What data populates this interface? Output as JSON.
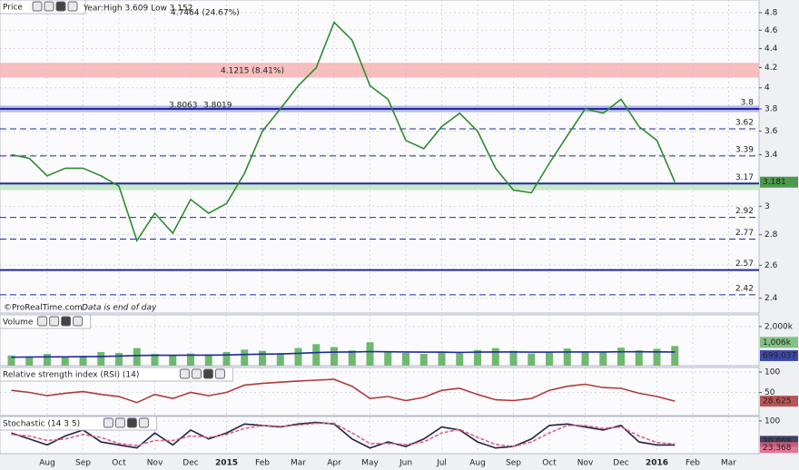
{
  "chart_data": [
    {
      "type": "line",
      "title": "Price",
      "subtitle": "Year:High 3.609 Low 3.152",
      "categories": [
        null,
        null,
        "Aug",
        null,
        "Sep",
        null,
        "Oct",
        null,
        "Nov",
        null,
        "Dec",
        null,
        "2015",
        null,
        "Feb",
        null,
        "Mar",
        null,
        "Apr",
        null,
        "May",
        null,
        "Jun",
        null,
        "Jul",
        null,
        "Aug",
        null,
        "Sep",
        null,
        "Oct",
        null,
        "Nov",
        null,
        "Dec",
        null,
        "2016",
        null,
        "Feb",
        null,
        "Mar"
      ],
      "series": [
        {
          "color": "#2e8b2e",
          "values": [
            3.4,
            3.37,
            3.23,
            3.29,
            3.29,
            3.23,
            3.15,
            2.76,
            2.95,
            2.81,
            3.05,
            2.95,
            3.02,
            3.25,
            3.6,
            3.8,
            4.02,
            4.2,
            4.69,
            4.49,
            4.02,
            3.89,
            3.52,
            3.45,
            3.64,
            3.76,
            3.6,
            3.29,
            3.12,
            3.1,
            3.33,
            3.56,
            3.8,
            3.76,
            3.89,
            3.64,
            3.52,
            3.181,
            null,
            null,
            null
          ]
        }
      ],
      "log_scale": true,
      "ylim": [
        2.315,
        4.95
      ],
      "yticks": [
        2.4,
        2.6,
        2.8,
        3,
        3.4,
        3.6,
        3.8,
        4,
        4.2,
        4.4,
        4.6,
        4.8
      ],
      "grid": true,
      "levels": [
        3.8,
        3.62,
        3.39,
        3.17,
        2.92,
        2.77,
        2.57,
        2.42
      ],
      "level_styles": [
        "solid",
        "dashed",
        "dashed",
        "solid",
        "dashed",
        "dashed",
        "solid",
        "dashed"
      ],
      "level_color": "#1f2a9c",
      "zones": [
        {
          "range": [
            4.1,
            4.25
          ],
          "color": "#f6b3b3"
        },
        {
          "range": [
            3.77,
            3.83
          ],
          "color": "#a9abe6"
        },
        {
          "range": [
            3.12,
            3.17
          ],
          "color": "#bfe3bf"
        }
      ],
      "annotations": [
        "4.7464 (24.67%)",
        "4.1215 (8.41%)",
        "3.8063",
        "3.8019",
        "©ProRealTime.com",
        "Data is end of day"
      ]
    },
    {
      "type": "bar",
      "title": "Volume",
      "ylim": [
        0,
        2600000
      ],
      "yticks": [
        {
          "value": 2000000,
          "label": "2,000k"
        }
      ],
      "grid": true,
      "series": [
        {
          "color": "#6fb86f",
          "values": [
            520000,
            480000,
            600000,
            450000,
            500000,
            700000,
            650000,
            900000,
            600000,
            550000,
            620000,
            580000,
            700000,
            820000,
            760000,
            650000,
            900000,
            1100000,
            950000,
            780000,
            1200000,
            700000,
            650000,
            600000,
            720000,
            640000,
            800000,
            900000,
            760000,
            620000,
            700000,
            880000,
            740000,
            680000,
            920000,
            780000,
            860000,
            1006000,
            null,
            null,
            null
          ],
          "value_labels": [
            null,
            null,
            null,
            null,
            null,
            null,
            null,
            null,
            null,
            null,
            null,
            null,
            null,
            null,
            null,
            null,
            null,
            null,
            null,
            null,
            null,
            null,
            null,
            null,
            null,
            null,
            null,
            null,
            null,
            null,
            null,
            null,
            null,
            null,
            null,
            null,
            null,
            "1,006k",
            null,
            null,
            null
          ]
        },
        {
          "type": "line",
          "color": "#1f2a9c",
          "values": [
            430000,
            440000,
            450000,
            450000,
            460000,
            470000,
            490000,
            520000,
            530000,
            530000,
            540000,
            540000,
            550000,
            570000,
            590000,
            600000,
            630000,
            670000,
            690000,
            700000,
            720000,
            710000,
            700000,
            690000,
            690000,
            680000,
            690000,
            700000,
            700000,
            690000,
            690000,
            700000,
            700000,
            700000,
            710000,
            710000,
            705000,
            699037,
            null,
            null,
            null
          ],
          "value_labels": [
            null,
            null,
            null,
            null,
            null,
            null,
            null,
            null,
            null,
            null,
            null,
            null,
            null,
            null,
            null,
            null,
            null,
            null,
            null,
            null,
            null,
            null,
            null,
            null,
            null,
            null,
            null,
            null,
            null,
            null,
            null,
            null,
            null,
            null,
            null,
            null,
            null,
            "699,037",
            null,
            null,
            null
          ]
        }
      ]
    },
    {
      "type": "line",
      "title": "Relative strength index (RSI) (14)",
      "ylim": [
        -6.7,
        111.1
      ],
      "yticks": [
        100,
        50
      ],
      "grid": true,
      "series": [
        {
          "color": "#b03a3a",
          "values": [
            55,
            50,
            42,
            48,
            52,
            45,
            40,
            25,
            45,
            35,
            50,
            42,
            50,
            68,
            72,
            75,
            78,
            80,
            82,
            65,
            35,
            40,
            30,
            38,
            55,
            60,
            45,
            32,
            30,
            35,
            55,
            65,
            70,
            62,
            60,
            48,
            40,
            28.625,
            null,
            null,
            null
          ]
        }
      ]
    },
    {
      "type": "line",
      "title": "Stochastic (14 3 5)",
      "ylim": [
        -9,
        115
      ],
      "yticks": [
        100
      ],
      "grid": true,
      "series": [
        {
          "color": "#22224a",
          "values": [
            60,
            40,
            20,
            50,
            70,
            30,
            20,
            10,
            60,
            20,
            70,
            40,
            60,
            90,
            85,
            80,
            90,
            95,
            90,
            40,
            10,
            30,
            15,
            40,
            80,
            70,
            30,
            10,
            15,
            40,
            85,
            90,
            80,
            70,
            85,
            30,
            20,
            20.068,
            null,
            null,
            null
          ]
        },
        {
          "color": "#e0607f",
          "dash": true,
          "values": [
            55,
            50,
            35,
            40,
            55,
            45,
            25,
            18,
            35,
            35,
            50,
            45,
            55,
            75,
            85,
            82,
            86,
            92,
            92,
            60,
            25,
            25,
            22,
            30,
            60,
            72,
            45,
            22,
            15,
            30,
            60,
            85,
            85,
            75,
            80,
            50,
            28,
            23.368,
            null,
            null,
            null
          ]
        }
      ]
    }
  ]
}
